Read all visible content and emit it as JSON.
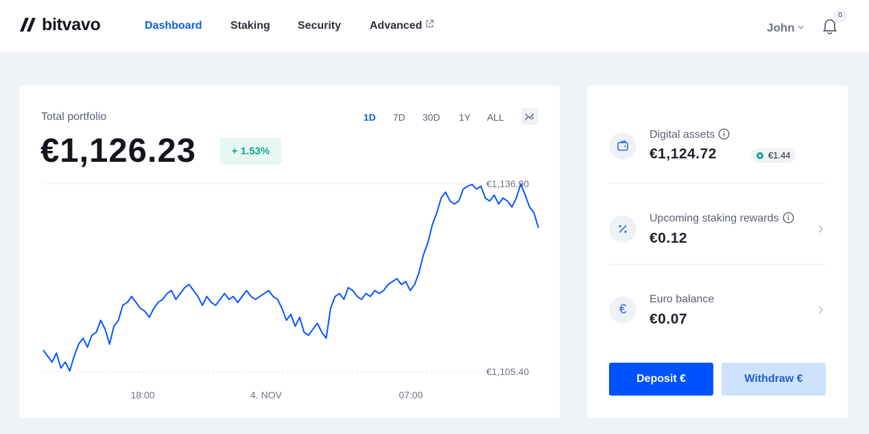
{
  "brand": {
    "name": "bitvavo"
  },
  "nav": {
    "items": [
      {
        "label": "Dashboard",
        "active": true
      },
      {
        "label": "Staking"
      },
      {
        "label": "Security"
      },
      {
        "label": "Advanced",
        "icon": "external-link-icon"
      }
    ],
    "user": "John",
    "notifications": "0"
  },
  "portfolio": {
    "label": "Total portfolio",
    "value": "€1,126.23",
    "change": "+ 1.53%",
    "ranges": [
      "1D",
      "7D",
      "30D",
      "1Y",
      "ALL"
    ],
    "active_range": "1D",
    "toggle_icon": "chart-toggle-icon"
  },
  "chart_data": {
    "type": "line",
    "color": "#0052ff",
    "y_high_label": "€1,136.90",
    "y_low_label": "€1,105.40",
    "ylim": [
      1105.4,
      1136.9
    ],
    "x_ticks": [
      "18:00",
      "4. NOV",
      "07:00"
    ],
    "series": [
      {
        "values": [
          1109.0,
          1108.0,
          1107.0,
          1108.5,
          1106.0,
          1107.0,
          1105.5,
          1108.0,
          1110.0,
          1111.0,
          1109.5,
          1111.5,
          1112.0,
          1114.0,
          1112.5,
          1110.0,
          1113.0,
          1114.0,
          1116.5,
          1117.0,
          1118.0,
          1117.0,
          1116.0,
          1115.5,
          1114.5,
          1116.0,
          1117.0,
          1117.5,
          1118.5,
          1119.0,
          1117.5,
          1118.5,
          1119.5,
          1120.0,
          1119.0,
          1118.0,
          1116.5,
          1118.0,
          1117.0,
          1116.5,
          1117.5,
          1118.5,
          1117.5,
          1118.0,
          1117.0,
          1118.0,
          1119.0,
          1118.0,
          1117.5,
          1118.0,
          1118.5,
          1119.0,
          1118.0,
          1117.5,
          1116.0,
          1114.0,
          1115.0,
          1113.0,
          1114.5,
          1112.0,
          1111.5,
          1112.5,
          1113.5,
          1112.0,
          1111.0,
          1116.0,
          1118.0,
          1118.5,
          1117.5,
          1119.5,
          1119.0,
          1118.0,
          1117.5,
          1118.5,
          1118.0,
          1119.0,
          1118.5,
          1119.0,
          1120.0,
          1120.5,
          1121.0,
          1120.0,
          1120.5,
          1119.0,
          1120.0,
          1122.0,
          1125.0,
          1127.0,
          1130.0,
          1132.0,
          1134.5,
          1135.5,
          1134.0,
          1133.5,
          1134.0,
          1136.0,
          1136.5,
          1136.8,
          1136.0,
          1136.5,
          1134.5,
          1134.0,
          1135.0,
          1133.5,
          1134.5,
          1134.0,
          1133.0,
          1134.5,
          1136.9,
          1135.0,
          1133.0,
          1132.0,
          1129.5
        ]
      }
    ]
  },
  "assets": [
    {
      "label": "Digital assets",
      "value": "€1,124.72",
      "badge": "€1.44",
      "icon": "wallet-icon",
      "info": true
    },
    {
      "label": "Upcoming staking rewards",
      "value": "€0.12",
      "icon": "percent-icon",
      "info": true
    },
    {
      "label": "Euro balance",
      "value": "€0.07",
      "icon_text": "€",
      "icon": "euro-icon"
    }
  ],
  "actions": {
    "deposit": "Deposit €",
    "withdraw": "Withdraw €"
  }
}
